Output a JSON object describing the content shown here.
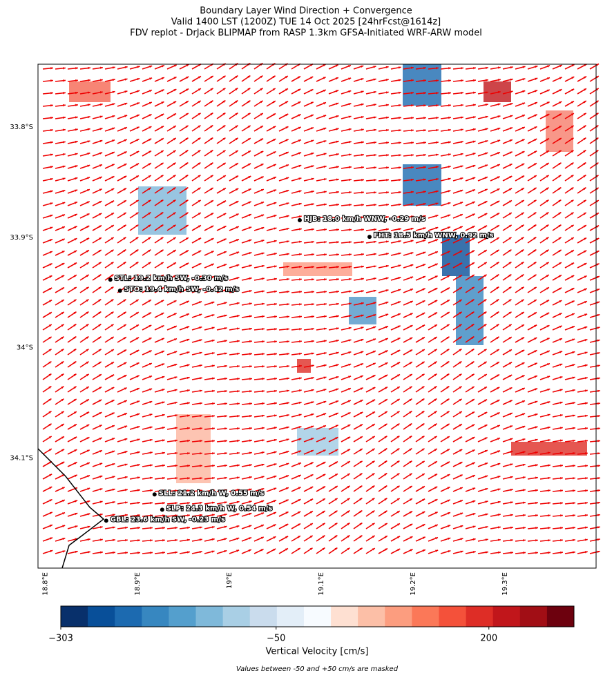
{
  "title": [
    "Boundary Layer Wind Direction + Convergence",
    "Valid 1400 LST (1200Z) TUE 14 Oct 2025 [24hrFcst@1614z]",
    "FDV replot - DrJack BLIPMAP from RASP 1.3km GFSA-Initiated WRF-ARW model"
  ],
  "map": {
    "lon_range": [
      18.792,
      19.399
    ],
    "lat_range": [
      -34.2,
      -33.743
    ],
    "lon_ticks": [
      {
        "value": 18.8,
        "label": "18.8°E"
      },
      {
        "value": 18.9,
        "label": "18.9°E"
      },
      {
        "value": 19.0,
        "label": "19°E"
      },
      {
        "value": 19.1,
        "label": "19.1°E"
      },
      {
        "value": 19.2,
        "label": "19.2°E"
      },
      {
        "value": 19.3,
        "label": "19.3°E"
      }
    ],
    "lat_ticks": [
      {
        "value": -33.8,
        "label": "33.8°S"
      },
      {
        "value": -33.9,
        "label": "33.9°S"
      },
      {
        "value": -34.0,
        "label": "34°S"
      },
      {
        "value": -34.1,
        "label": "34.1°S"
      }
    ],
    "stations": [
      {
        "label": "HJB: 18.0 km/h WNW, -0.29 m/s",
        "lon": 19.0767,
        "lat": -33.8845
      },
      {
        "label": "FHT: 18.5 km/h WNW, 0.92 m/s",
        "lon": 19.1526,
        "lat": -33.8996
      },
      {
        "label": "STL: 19.2 km/h SW, -0.30 m/s",
        "lon": 18.8707,
        "lat": -33.9384
      },
      {
        "label": "STO: 19.4 km/h SW, -0.42 m/s",
        "lon": 18.8812,
        "lat": -33.9484
      },
      {
        "label": "SLL: 21.2 km/h W, 0.55 m/s",
        "lon": 18.9188,
        "lat": -34.1332
      },
      {
        "label": "SLP: 24.3 km/h W, 0.54 m/s",
        "lon": 18.9271,
        "lat": -34.147
      },
      {
        "label": "GBL: 23.6 km/h SW, -0.23 m/s",
        "lon": 18.8662,
        "lat": -34.157
      }
    ]
  },
  "colorbar": {
    "label": "Vertical Velocity [cm/s]",
    "lim": [
      -303,
      300
    ],
    "ticks": [
      {
        "value": -303,
        "label": "−303"
      },
      {
        "value": -50,
        "label": "−50"
      },
      {
        "value": 200,
        "label": "200"
      }
    ],
    "colors": [
      "#08306b",
      "#084f99",
      "#1c6ab0",
      "#3787c0",
      "#549fcd",
      "#7fb9da",
      "#a9cfe5",
      "#cadced",
      "#e3eef8",
      "#f7fbff",
      "#fee0d2",
      "#fcbfa7",
      "#fc9d7f",
      "#fb7858",
      "#f4513a",
      "#de2d26",
      "#c1161b",
      "#a10e15",
      "#6d010e"
    ]
  },
  "footnote": "Values between -50 and +50 cm/s are masked"
}
